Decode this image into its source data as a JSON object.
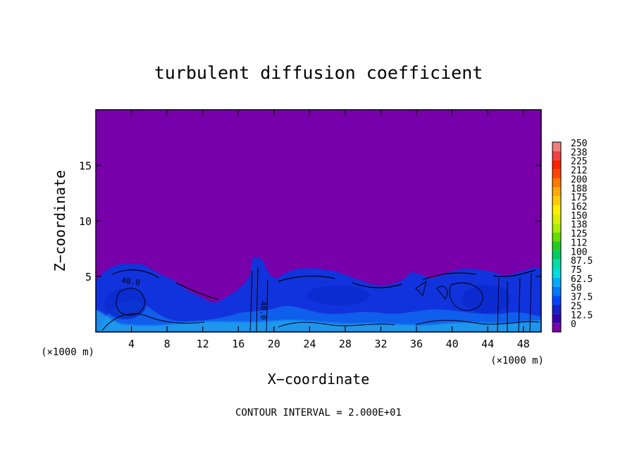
{
  "chart_data": {
    "type": "heatmap",
    "title": "turbulent diffusion coefficient",
    "xlabel": "X−coordinate",
    "ylabel": "Z−coordinate",
    "x_unit_left": "(×1000 m)",
    "x_unit_right": "(×1000 m)",
    "xlim": [
      0,
      50
    ],
    "ylim": [
      0,
      20
    ],
    "x_ticks": [
      4,
      8,
      12,
      16,
      20,
      24,
      28,
      32,
      36,
      40,
      44,
      48
    ],
    "y_ticks": [
      5,
      10,
      15
    ],
    "colorbar": {
      "labels": [
        "250",
        "238",
        "225",
        "212",
        "200",
        "188",
        "175",
        "162",
        "150",
        "138",
        "125",
        "112",
        "100",
        "87.5",
        "75",
        "62.5",
        "50",
        "37.5",
        "25",
        "12.5",
        "0"
      ],
      "colors": [
        "#f08080",
        "#f04040",
        "#ff2000",
        "#ff4400",
        "#ff7700",
        "#ffaa00",
        "#ffcc00",
        "#ffee00",
        "#ddee00",
        "#aaee00",
        "#66dd00",
        "#22cc22",
        "#00cc66",
        "#00ddaa",
        "#00dddd",
        "#00aaff",
        "#0077ff",
        "#0044ff",
        "#1122cc",
        "#3300aa",
        "#7700aa"
      ]
    },
    "contour_labels": [
      "40.0",
      "40.0"
    ],
    "contour_interval": "CONTOUR INTERVAL = 2.000E+01"
  }
}
